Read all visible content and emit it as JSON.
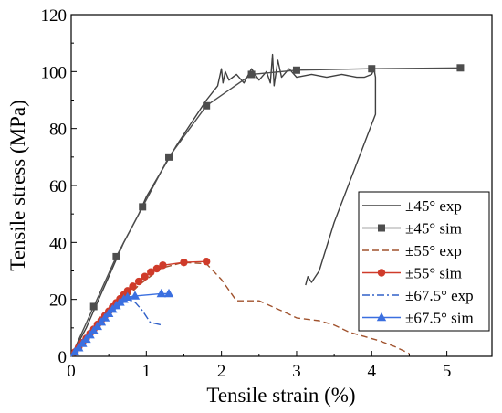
{
  "chart_data": {
    "type": "line",
    "xlabel": "Tensile strain (%)",
    "ylabel": "Tensile stress (MPa)",
    "xlim": [
      0,
      5.6
    ],
    "ylim": [
      0,
      120
    ],
    "x_ticks": [
      "0",
      "1",
      "2",
      "3",
      "4",
      "5"
    ],
    "y_ticks": [
      "0",
      "20",
      "40",
      "60",
      "80",
      "100",
      "120"
    ],
    "grid": false,
    "legend_position": "bottom-right",
    "series": [
      {
        "name": "±45° exp",
        "color": "#404040",
        "style": "solid",
        "marker": "none",
        "points": [
          [
            0,
            0
          ],
          [
            0.1,
            5
          ],
          [
            0.2,
            10
          ],
          [
            0.3,
            16
          ],
          [
            0.4,
            22
          ],
          [
            0.5,
            28
          ],
          [
            0.6,
            34
          ],
          [
            0.7,
            40
          ],
          [
            0.8,
            45
          ],
          [
            0.9,
            50
          ],
          [
            1.0,
            56
          ],
          [
            1.2,
            65
          ],
          [
            1.4,
            74
          ],
          [
            1.6,
            82
          ],
          [
            1.8,
            90
          ],
          [
            1.95,
            95
          ],
          [
            2.0,
            101
          ],
          [
            2.02,
            96
          ],
          [
            2.05,
            100
          ],
          [
            2.1,
            97
          ],
          [
            2.2,
            99
          ],
          [
            2.3,
            96
          ],
          [
            2.4,
            101
          ],
          [
            2.5,
            97
          ],
          [
            2.6,
            100
          ],
          [
            2.65,
            96
          ],
          [
            2.68,
            106
          ],
          [
            2.7,
            95
          ],
          [
            2.75,
            104
          ],
          [
            2.8,
            98
          ],
          [
            2.9,
            101
          ],
          [
            3.0,
            98
          ],
          [
            3.2,
            99
          ],
          [
            3.4,
            98
          ],
          [
            3.6,
            99
          ],
          [
            3.8,
            98
          ],
          [
            3.9,
            98
          ],
          [
            4.0,
            99
          ],
          [
            4.03,
            101
          ],
          [
            4.05,
            98
          ],
          [
            4.05,
            85
          ],
          [
            3.5,
            47
          ],
          [
            3.3,
            30
          ],
          [
            3.2,
            26
          ],
          [
            3.15,
            28
          ],
          [
            3.12,
            25
          ]
        ]
      },
      {
        "name": "±45° sim",
        "color": "#4d4d4d",
        "style": "solid",
        "marker": "square",
        "points": [
          [
            0,
            0
          ],
          [
            0.3,
            17.5
          ],
          [
            0.6,
            35
          ],
          [
            0.95,
            52.5
          ],
          [
            1.3,
            70
          ],
          [
            1.8,
            88
          ],
          [
            2.4,
            99
          ],
          [
            3.0,
            100.5
          ],
          [
            4.0,
            101
          ],
          [
            5.18,
            101.3
          ]
        ]
      },
      {
        "name": "±55° exp",
        "color": "#a0522d",
        "style": "dashed",
        "marker": "none",
        "points": [
          [
            0,
            0
          ],
          [
            0.3,
            9
          ],
          [
            0.6,
            17
          ],
          [
            0.9,
            25
          ],
          [
            1.2,
            31
          ],
          [
            1.5,
            33
          ],
          [
            1.8,
            32.5
          ],
          [
            2.0,
            27
          ],
          [
            2.2,
            19.5
          ],
          [
            2.5,
            19.5
          ],
          [
            2.8,
            16
          ],
          [
            3.0,
            13.5
          ],
          [
            3.3,
            12.5
          ],
          [
            3.5,
            11
          ],
          [
            3.7,
            8.5
          ],
          [
            3.9,
            7
          ],
          [
            4.1,
            5.5
          ],
          [
            4.3,
            3.5
          ],
          [
            4.5,
            1
          ]
        ]
      },
      {
        "name": "±55° sim",
        "color": "#cf3b2a",
        "style": "solid",
        "marker": "circle",
        "points": [
          [
            0,
            0
          ],
          [
            0.05,
            1.5
          ],
          [
            0.1,
            3.2
          ],
          [
            0.15,
            4.8
          ],
          [
            0.2,
            6.3
          ],
          [
            0.25,
            8
          ],
          [
            0.3,
            9.5
          ],
          [
            0.35,
            11.2
          ],
          [
            0.4,
            12.7
          ],
          [
            0.45,
            14.3
          ],
          [
            0.5,
            15.8
          ],
          [
            0.55,
            17.3
          ],
          [
            0.6,
            18.8
          ],
          [
            0.65,
            20.2
          ],
          [
            0.7,
            21.6
          ],
          [
            0.75,
            23
          ],
          [
            0.82,
            24.6
          ],
          [
            0.9,
            26.3
          ],
          [
            0.98,
            28
          ],
          [
            1.06,
            29.6
          ],
          [
            1.14,
            30.8
          ],
          [
            1.22,
            32
          ],
          [
            1.5,
            33
          ],
          [
            1.8,
            33.3
          ]
        ]
      },
      {
        "name": "±67.5° exp",
        "color": "#3060c8",
        "style": "dashdot",
        "marker": "none",
        "points": [
          [
            0,
            0
          ],
          [
            0.2,
            6
          ],
          [
            0.4,
            12
          ],
          [
            0.6,
            17
          ],
          [
            0.75,
            20
          ],
          [
            0.85,
            19
          ],
          [
            0.95,
            16
          ],
          [
            1.05,
            12
          ],
          [
            1.2,
            11
          ]
        ]
      },
      {
        "name": "±67.5° sim",
        "color": "#3a6fe0",
        "style": "solid",
        "marker": "triangle",
        "points": [
          [
            0,
            0
          ],
          [
            0.05,
            1.5
          ],
          [
            0.1,
            3
          ],
          [
            0.15,
            4.5
          ],
          [
            0.2,
            6
          ],
          [
            0.25,
            7.5
          ],
          [
            0.3,
            9
          ],
          [
            0.35,
            10.5
          ],
          [
            0.4,
            12
          ],
          [
            0.45,
            13.5
          ],
          [
            0.5,
            15
          ],
          [
            0.55,
            16.5
          ],
          [
            0.6,
            17.8
          ],
          [
            0.65,
            19
          ],
          [
            0.7,
            20
          ],
          [
            0.75,
            20.8
          ],
          [
            0.85,
            21.2
          ],
          [
            1.2,
            22
          ],
          [
            1.3,
            22
          ]
        ]
      }
    ]
  }
}
